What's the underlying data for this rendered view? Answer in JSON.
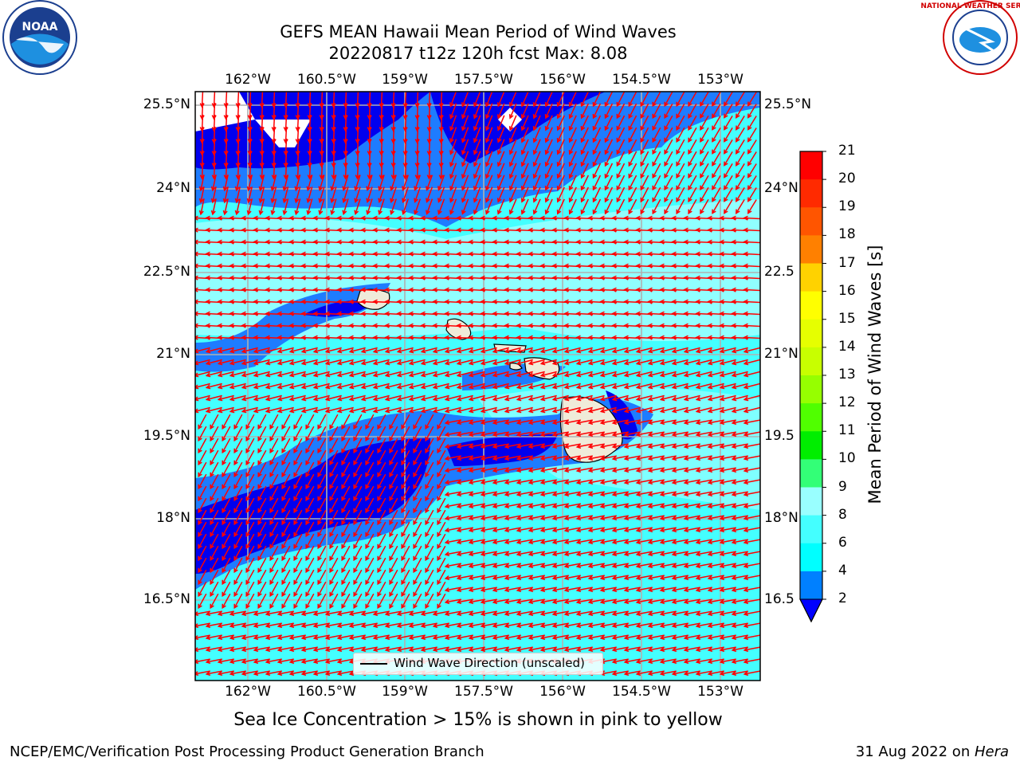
{
  "header": {
    "title_line1": "GEFS MEAN Hawaii Mean Period of Wind Waves",
    "title_line2": "20220817 t12z 120h fcst   Max: 8.08"
  },
  "logos": {
    "left": "NOAA",
    "right": "NATIONAL WEATHER SERVICE"
  },
  "map": {
    "lon_ticks": [
      "162°W",
      "160.5°W",
      "159°W",
      "157.5°W",
      "156°W",
      "154.5°W",
      "153°W"
    ],
    "lat_ticks_left": [
      "25.5°N",
      "24°N",
      "22.5°N",
      "21°N",
      "19.5°N",
      "18°N",
      "16.5°N"
    ],
    "lat_ticks_right": [
      "25.5°N",
      "24°N",
      "22.5",
      "21°N",
      "19.5",
      "18°N",
      "16.5"
    ],
    "legend_label": "Wind Wave Direction (unscaled)",
    "arrow_color": "#ff0000",
    "land_color": "#efebd9"
  },
  "colorbar": {
    "label": "Mean Period of Wind Waves [s]",
    "ticks": [
      "21",
      "20",
      "19",
      "18",
      "17",
      "16",
      "15",
      "14",
      "13",
      "12",
      "11",
      "10",
      "9",
      "8",
      "6",
      "4",
      "2"
    ],
    "colors": [
      "#ff0000",
      "#ff2a00",
      "#ff5500",
      "#ff8000",
      "#ffaa00",
      "#ffd200",
      "#ffff00",
      "#e6ff00",
      "#c8ff00",
      "#96ff00",
      "#50ff00",
      "#00ee00",
      "#33ff77",
      "#55ff99",
      "#99ffff",
      "#44ffff",
      "#00ffff",
      "#0080ff"
    ],
    "under_color": "#0000ff"
  },
  "note": "Sea Ice Concentration > 15% is shown in pink to yellow",
  "footer": {
    "left": "NCEP/EMC/Verification Post Processing Product Generation Branch",
    "right_date": "31 Aug 2022 on ",
    "right_host": "Hera"
  }
}
